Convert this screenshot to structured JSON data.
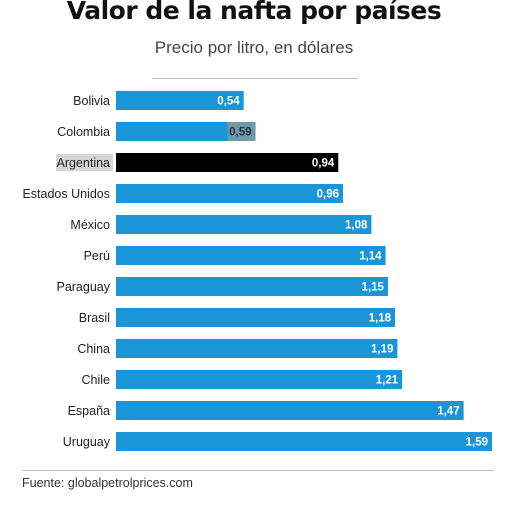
{
  "header": {
    "title": "Valor de la nafta por países",
    "subtitle": "Precio por litro, en dólares"
  },
  "footer": {
    "source": "Fuente: globalpetrolprices.com"
  },
  "colors": {
    "bar": "#1a96d8",
    "highlight_bar": "#000000",
    "highlight_label_bg": "#d6d6d6",
    "colombia_value_bg": "#6f98a8"
  },
  "chart_data": {
    "type": "bar",
    "orientation": "horizontal",
    "title": "Valor de la nafta por países",
    "subtitle": "Precio por litro, en dólares",
    "categories": [
      "Bolivia",
      "Colombia",
      "Argentina",
      "Estados Unidos",
      "México",
      "Perú",
      "Paraguay",
      "Brasil",
      "China",
      "Chile",
      "España",
      "Uruguay"
    ],
    "values": [
      0.54,
      0.59,
      0.94,
      0.96,
      1.08,
      1.14,
      1.15,
      1.18,
      1.19,
      1.21,
      1.47,
      1.59
    ],
    "value_labels": [
      "0,54",
      "0,59",
      "0,94",
      "0,96",
      "1,08",
      "1,14",
      "1,15",
      "1,18",
      "1,19",
      "1,21",
      "1,47",
      "1,59"
    ],
    "highlight": "Argentina",
    "xlim": [
      0,
      1.59
    ],
    "grid": false,
    "legend": "none"
  }
}
